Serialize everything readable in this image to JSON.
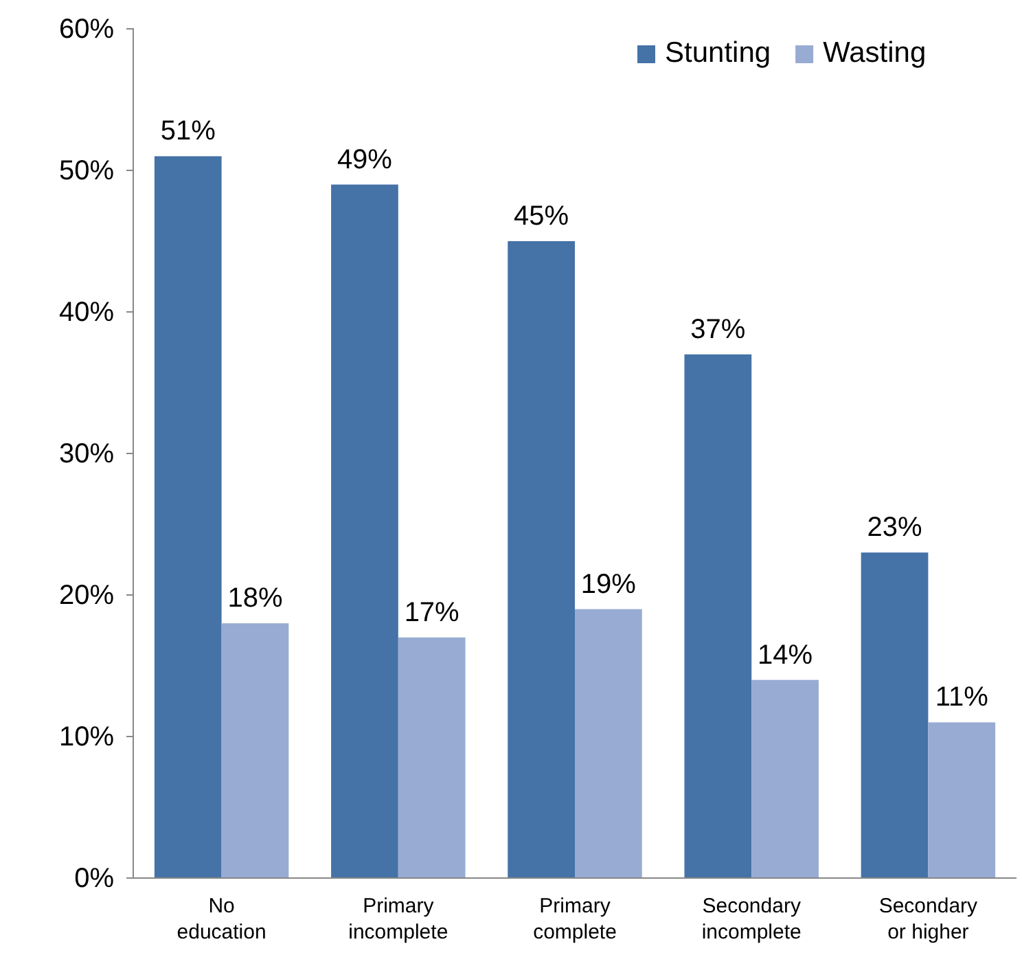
{
  "chart_data": {
    "type": "bar",
    "categories": [
      "No education",
      "Primary incomplete",
      "Primary complete",
      "Secondary incomplete",
      "Secondary or higher"
    ],
    "series": [
      {
        "name": "Stunting",
        "color": "#4572a7",
        "values": [
          51,
          49,
          45,
          37,
          23
        ],
        "value_labels": [
          "51%",
          "49%",
          "45%",
          "37%",
          "23%"
        ]
      },
      {
        "name": "Wasting",
        "color": "#98abd3",
        "values": [
          18,
          17,
          19,
          14,
          11
        ],
        "value_labels": [
          "18%",
          "17%",
          "19%",
          "14%",
          "11%"
        ]
      }
    ],
    "ylim": [
      0,
      60
    ],
    "yticks": [
      {
        "value": 0,
        "label": "0%"
      },
      {
        "value": 10,
        "label": "10%"
      },
      {
        "value": 20,
        "label": "20%"
      },
      {
        "value": 30,
        "label": "30%"
      },
      {
        "value": 40,
        "label": "40%"
      },
      {
        "value": 50,
        "label": "50%"
      },
      {
        "value": 60,
        "label": "60%"
      }
    ],
    "grid": false,
    "legend": "top right"
  }
}
